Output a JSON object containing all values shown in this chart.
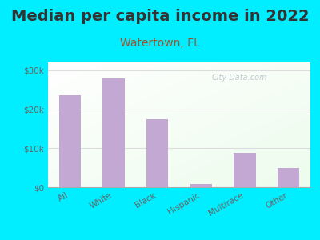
{
  "title": "Median per capita income in 2022",
  "subtitle": "Watertown, FL",
  "categories": [
    "All",
    "White",
    "Black",
    "Hispanic",
    "Multirace",
    "Other"
  ],
  "values": [
    23500,
    28000,
    17500,
    800,
    8800,
    5000
  ],
  "bar_color": "#c4a8d4",
  "title_fontsize": 14,
  "subtitle_fontsize": 10,
  "subtitle_color": "#a0522d",
  "title_color": "#333333",
  "ylabel_ticks": [
    0,
    10000,
    20000,
    30000
  ],
  "ylabel_labels": [
    "$0",
    "$10k",
    "$20k",
    "$30k"
  ],
  "ylim": [
    0,
    32000
  ],
  "bg_outer": "#00eeff",
  "watermark": "City-Data.com",
  "tick_color": "#666666",
  "axis_color": "#aaaaaa",
  "grid_color": "#dddddd"
}
